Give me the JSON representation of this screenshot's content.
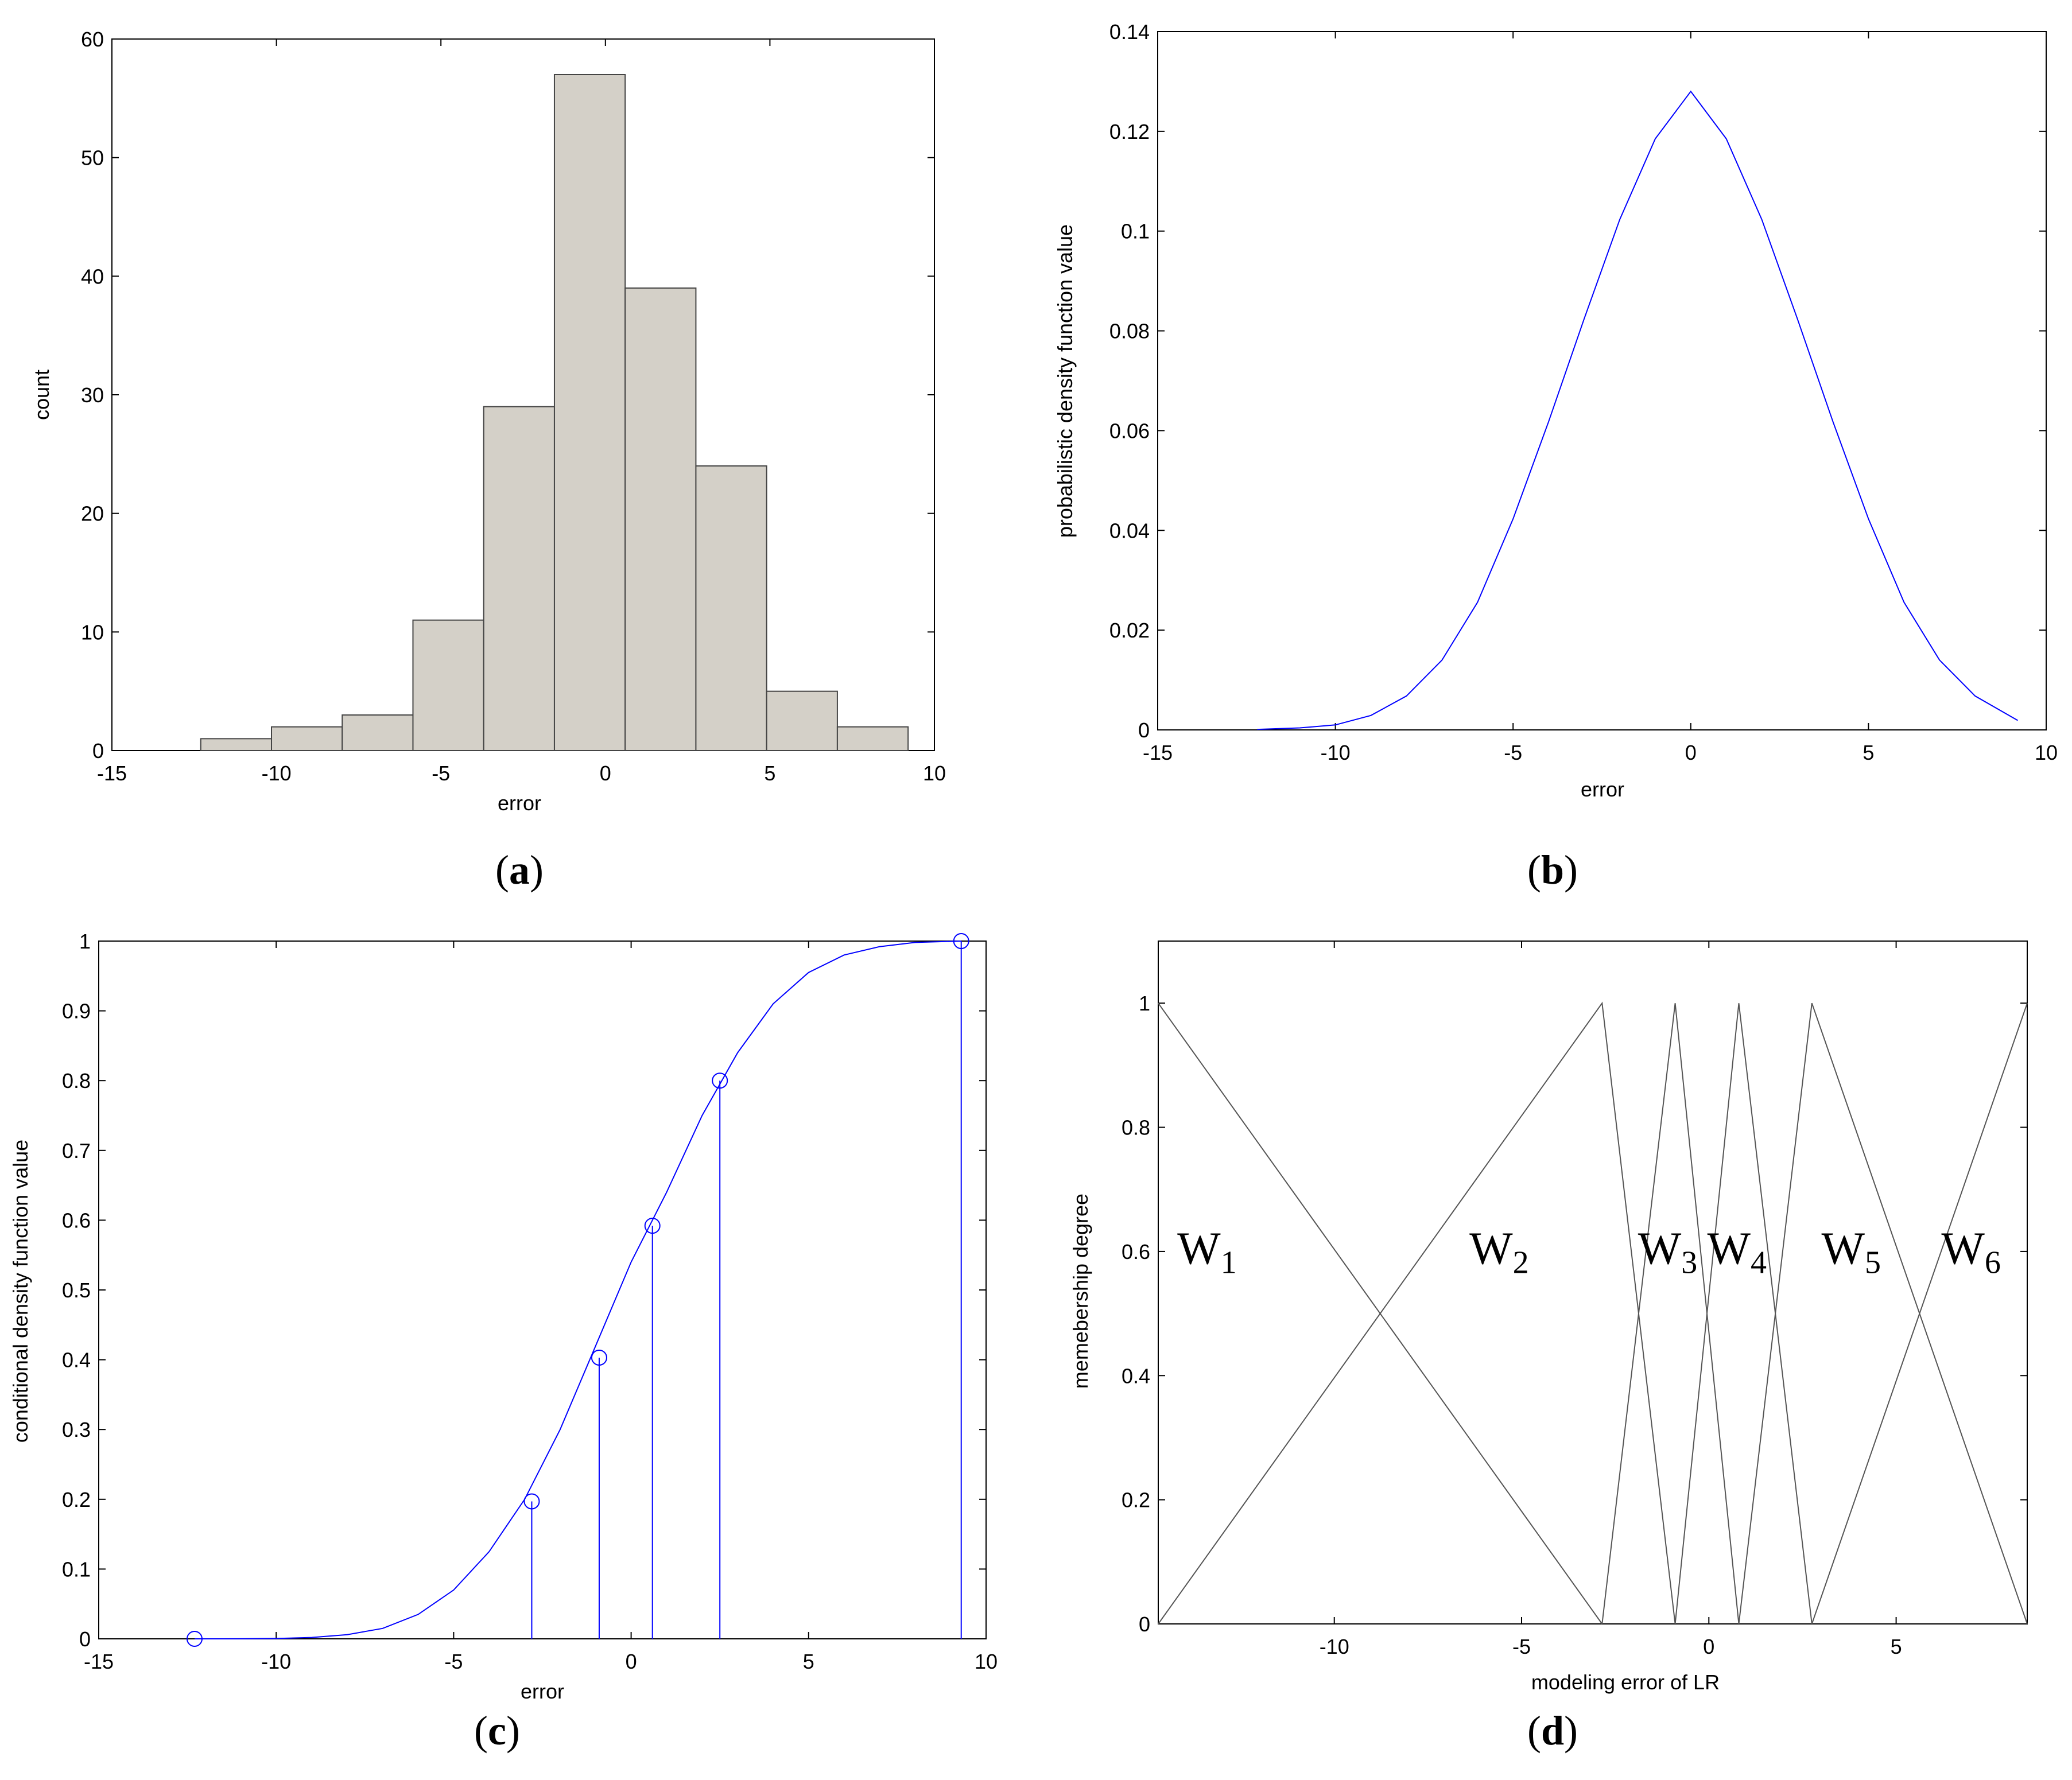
{
  "colors": {
    "bar_fill": "#d4d0c8",
    "bar_edge": "#444444",
    "line_blue": "#0000ff",
    "membership": "#555555"
  },
  "chart_data": [
    {
      "id": "a",
      "type": "bar",
      "caption": {
        "open": "(",
        "letter": "a",
        "close": ")"
      },
      "xlabel": "error",
      "ylabel": "count",
      "xlim": [
        -15,
        10
      ],
      "ylim": [
        0,
        60
      ],
      "xticks": [
        -15,
        -10,
        -5,
        0,
        5,
        10
      ],
      "yticks": [
        0,
        10,
        20,
        30,
        40,
        50,
        60
      ],
      "bins": [
        {
          "x0": -12.3,
          "x1": -10.15,
          "value": 1
        },
        {
          "x0": -10.15,
          "x1": -8.0,
          "value": 2
        },
        {
          "x0": -8.0,
          "x1": -5.85,
          "value": 3
        },
        {
          "x0": -5.85,
          "x1": -3.7,
          "value": 11
        },
        {
          "x0": -3.7,
          "x1": -1.55,
          "value": 29
        },
        {
          "x0": -1.55,
          "x1": 0.6,
          "value": 57
        },
        {
          "x0": 0.6,
          "x1": 2.75,
          "value": 39
        },
        {
          "x0": 2.75,
          "x1": 4.9,
          "value": 24
        },
        {
          "x0": 4.9,
          "x1": 7.05,
          "value": 5
        },
        {
          "x0": 7.05,
          "x1": 9.2,
          "value": 2
        }
      ]
    },
    {
      "id": "b",
      "type": "line",
      "caption": {
        "open": "(",
        "letter": "b",
        "close": ")"
      },
      "xlabel": "error",
      "ylabel": "probabilistic density function value",
      "xlim": [
        -15,
        10
      ],
      "ylim": [
        0,
        0.14
      ],
      "xticks": [
        -15,
        -10,
        -5,
        0,
        5,
        10
      ],
      "yticks": [
        0,
        0.02,
        0.04,
        0.06,
        0.08,
        0.1,
        0.12,
        0.14
      ],
      "series": [
        {
          "x": [
            -12.2,
            -11,
            -10,
            -9,
            -8,
            -7,
            -6,
            -5,
            -4,
            -3,
            -2,
            -1,
            0,
            1,
            2,
            3,
            4,
            5,
            6,
            7,
            8,
            9.2
          ],
          "y": [
            0.0001,
            0.0004,
            0.001,
            0.0029,
            0.0068,
            0.014,
            0.0256,
            0.0423,
            0.0618,
            0.0824,
            0.1023,
            0.1185,
            0.128,
            0.1185,
            0.1023,
            0.0824,
            0.0618,
            0.0423,
            0.0256,
            0.014,
            0.0068,
            0.0019
          ]
        }
      ]
    },
    {
      "id": "c",
      "type": "line",
      "caption": {
        "open": "(",
        "letter": "c",
        "close": ")"
      },
      "xlabel": "error",
      "ylabel": "conditional density function value",
      "xlim": [
        -15,
        10
      ],
      "ylim": [
        0,
        1
      ],
      "xticks": [
        -15,
        -10,
        -5,
        0,
        5,
        10
      ],
      "yticks": [
        0,
        0.1,
        0.2,
        0.3,
        0.4,
        0.5,
        0.6,
        0.7,
        0.8,
        0.9,
        1
      ],
      "series": [
        {
          "x": [
            -12.3,
            -11,
            -10,
            -9,
            -8,
            -7,
            -6,
            -5,
            -4,
            -3,
            -2,
            -1,
            0,
            1,
            2,
            3,
            4,
            5,
            6,
            7,
            8,
            9.3
          ],
          "y": [
            0.0,
            0.0001,
            0.0005,
            0.002,
            0.006,
            0.015,
            0.035,
            0.07,
            0.125,
            0.2,
            0.3,
            0.42,
            0.54,
            0.64,
            0.75,
            0.84,
            0.91,
            0.955,
            0.98,
            0.992,
            0.998,
            1.0
          ]
        }
      ],
      "stems": [
        {
          "x": -12.3,
          "y": 0.0
        },
        {
          "x": -2.8,
          "y": 0.197
        },
        {
          "x": -0.9,
          "y": 0.403
        },
        {
          "x": 0.6,
          "y": 0.592
        },
        {
          "x": 2.5,
          "y": 0.8
        },
        {
          "x": 9.3,
          "y": 1.0
        }
      ]
    },
    {
      "id": "d",
      "type": "line",
      "caption": {
        "open": "(",
        "letter": "d",
        "close": ")"
      },
      "xlabel": "modeling error of LR",
      "ylabel": "memebership degree",
      "xlim": [
        -14.7,
        8.5
      ],
      "ylim": [
        0,
        1.1
      ],
      "xticks": [
        -10,
        -5,
        0,
        5
      ],
      "yticks": [
        0,
        0.2,
        0.4,
        0.6,
        0.8,
        1
      ],
      "membership": [
        {
          "points": [
            [
              -14.7,
              1
            ],
            [
              -2.85,
              0
            ]
          ]
        },
        {
          "points": [
            [
              -14.7,
              0
            ],
            [
              -2.85,
              1
            ],
            [
              -0.9,
              0
            ]
          ]
        },
        {
          "points": [
            [
              -2.85,
              0
            ],
            [
              -0.9,
              1
            ],
            [
              0.8,
              0
            ]
          ]
        },
        {
          "points": [
            [
              -0.9,
              0
            ],
            [
              0.8,
              1
            ],
            [
              2.75,
              0
            ]
          ]
        },
        {
          "points": [
            [
              0.8,
              0
            ],
            [
              2.75,
              1
            ],
            [
              8.5,
              0
            ]
          ]
        },
        {
          "points": [
            [
              2.75,
              0
            ],
            [
              8.5,
              1
            ]
          ]
        }
      ],
      "set_labels": [
        {
          "base": "W",
          "sub": "1",
          "x": -13.4,
          "y": 0.58
        },
        {
          "base": "W",
          "sub": "2",
          "x": -5.6,
          "y": 0.58
        },
        {
          "base": "W",
          "sub": "3",
          "x": -1.1,
          "y": 0.58
        },
        {
          "base": "W",
          "sub": "4",
          "x": 0.75,
          "y": 0.58
        },
        {
          "base": "W",
          "sub": "5",
          "x": 3.8,
          "y": 0.58
        },
        {
          "base": "W",
          "sub": "6",
          "x": 7.0,
          "y": 0.58
        }
      ]
    }
  ]
}
